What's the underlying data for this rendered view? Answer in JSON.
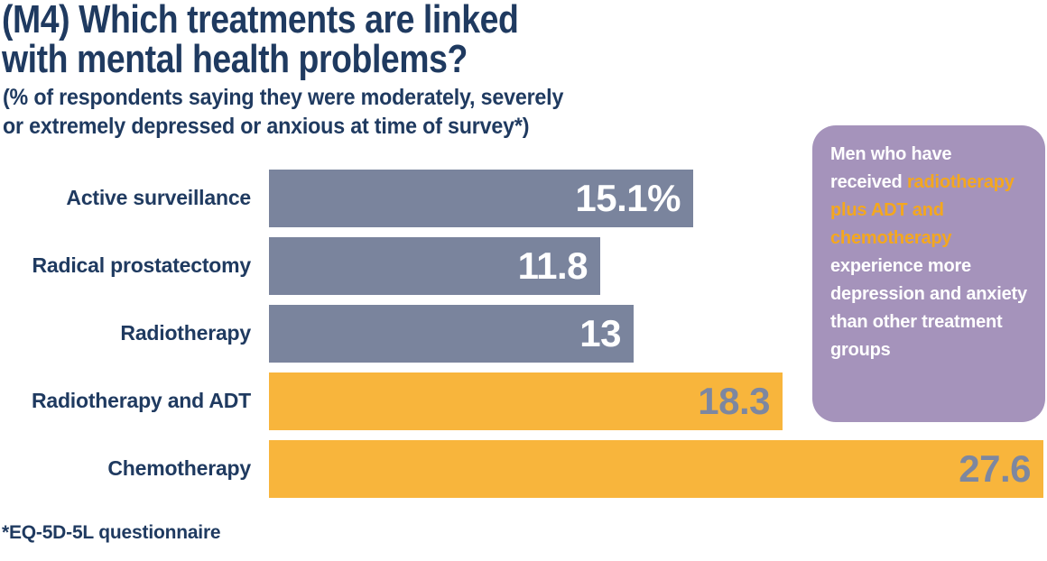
{
  "title": {
    "line1": "(M4) Which treatments are linked",
    "line2": "with mental health problems?"
  },
  "subtitle": {
    "line1": "(% of respondents saying they were moderately, severely",
    "line2": "or extremely depressed or anxious at time of survey*)"
  },
  "footnote": "*EQ-5D-5L questionnaire",
  "callout": {
    "text_before": "Men who have received ",
    "text_highlight": "radiotherapy plus ADT and chemotherapy",
    "text_after": " experience more depression and anxiety than other treatment groups"
  },
  "colors": {
    "navy": "#1f3a60",
    "slate_bar": "#7a849d",
    "orange_bar": "#f8b53c",
    "value_on_slate": "#ffffff",
    "value_on_orange": "#7d87a0",
    "callout_bg": "#a593bb",
    "callout_text": "#ffffff",
    "callout_hl": "#f4a71e"
  },
  "chart_data": {
    "type": "bar",
    "orientation": "horizontal",
    "title": "(M4) Which treatments are linked with mental health problems?",
    "subtitle": "(% of respondents saying they were moderately, severely or extremely depressed or anxious at time of survey*)",
    "unit": "%",
    "categories": [
      "Active surveillance",
      "Radical prostatectomy",
      "Radiotherapy",
      "Radiotherapy and ADT",
      "Chemotherapy"
    ],
    "values": [
      15.1,
      11.8,
      13,
      18.3,
      27.6
    ],
    "value_labels": [
      "15.1%",
      "11.8",
      "13",
      "18.3",
      "27.6"
    ],
    "bar_colors": [
      "slate",
      "slate",
      "slate",
      "orange",
      "orange"
    ],
    "xlim": [
      0,
      27.7
    ],
    "grid": false,
    "legend": false,
    "annotation": "Men who have received radiotherapy plus ADT and chemotherapy experience more depression and anxiety than other treatment groups"
  }
}
